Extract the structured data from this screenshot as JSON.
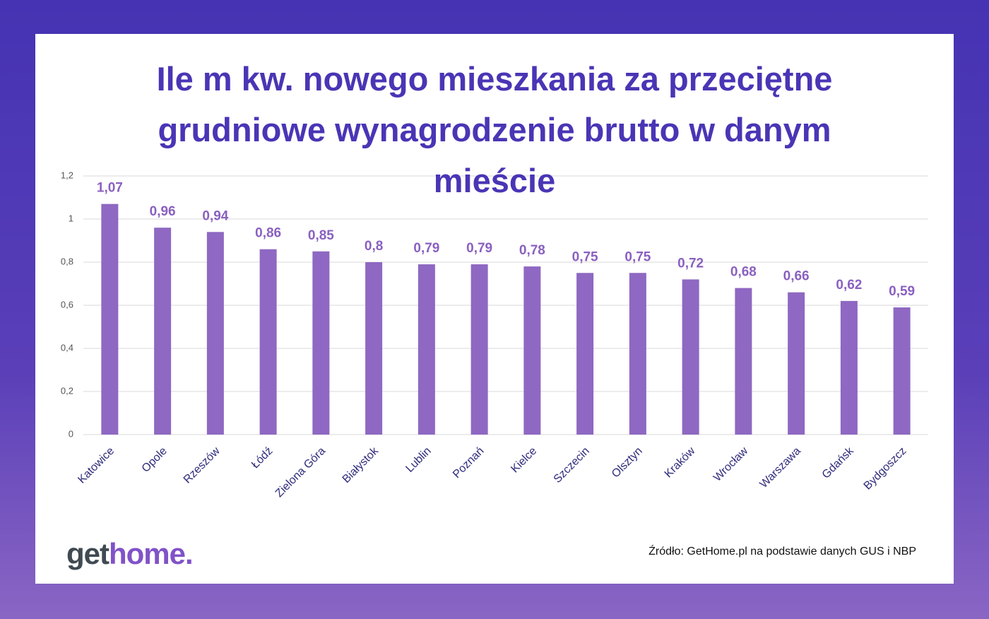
{
  "chart_data": {
    "type": "bar",
    "title": "Ile m kw. nowego mieszkania za przeciętne grudniowe wynagrodzenie brutto w danym mieście",
    "categories": [
      "Katowice",
      "Opole",
      "Rzeszów",
      "Łódź",
      "Zielona Góra",
      "Białystok",
      "Lublin",
      "Poznań",
      "Kielce",
      "Szczecin",
      "Olsztyn",
      "Kraków",
      "Wrocław",
      "Warszawa",
      "Gdańsk",
      "Bydgoszcz"
    ],
    "values": [
      1.07,
      0.96,
      0.94,
      0.86,
      0.85,
      0.8,
      0.79,
      0.79,
      0.78,
      0.75,
      0.75,
      0.72,
      0.68,
      0.66,
      0.62,
      0.59
    ],
    "value_labels": [
      "1,07",
      "0,96",
      "0,94",
      "0,86",
      "0,85",
      "0,8",
      "0,79",
      "0,79",
      "0,78",
      "0,75",
      "0,75",
      "0,72",
      "0,68",
      "0,66",
      "0,62",
      "0,59"
    ],
    "color": "#8e68c2",
    "ylim": [
      0,
      1.2
    ],
    "yticks": [
      0,
      {
        "value": 0.2,
        "label": "0,2"
      },
      {
        "value": 0.4,
        "label": "0,4"
      },
      {
        "value": 0.6,
        "label": "0,6"
      },
      {
        "value": 0.8,
        "label": "0,8"
      },
      1,
      {
        "value": 1.2,
        "label": "1,2"
      }
    ],
    "grid": true,
    "source": "Źródło: GetHome.pl na podstawie danych GUS i NBP",
    "logo": [
      "get",
      "home."
    ]
  }
}
